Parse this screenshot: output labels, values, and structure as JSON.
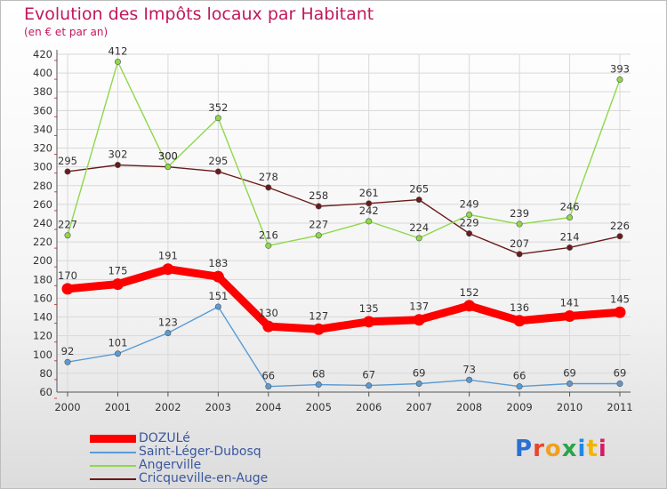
{
  "title": "Evolution des Impôts locaux par Habitant",
  "subtitle": "(en € et par an)",
  "logo": "Proxiti",
  "colors": {
    "title": "#c2185b",
    "legend_text": "#3a57a0",
    "grid": "#d8d8d8",
    "axis": "#555555"
  },
  "chart_data": {
    "type": "line",
    "title": "Evolution des Impôts locaux par Habitant",
    "subtitle": "(en € et par an)",
    "xlabel": "",
    "ylabel": "",
    "x": [
      "2000",
      "2001",
      "2002",
      "2003",
      "2004",
      "2005",
      "2006",
      "2007",
      "2008",
      "2009",
      "2010",
      "2011"
    ],
    "ylim": [
      60,
      420
    ],
    "yticks": [
      60,
      80,
      100,
      120,
      140,
      160,
      180,
      200,
      220,
      240,
      260,
      280,
      300,
      320,
      340,
      360,
      380,
      400,
      420
    ],
    "grid": true,
    "legend_position": "bottom-left",
    "series": [
      {
        "name": "Cricqueville-en-Auge",
        "color": "#6b1a1a",
        "values": [
          295,
          302,
          300,
          295,
          278,
          258,
          261,
          265,
          229,
          207,
          214,
          226
        ]
      },
      {
        "name": "Angerville",
        "color": "#8ed84a",
        "values": [
          227,
          412,
          300,
          352,
          216,
          227,
          242,
          224,
          249,
          239,
          246,
          393
        ]
      },
      {
        "name": "Saint-Léger-Dubosq",
        "color": "#5a9bd4",
        "values": [
          92,
          101,
          123,
          151,
          66,
          68,
          67,
          69,
          73,
          66,
          69,
          69
        ]
      },
      {
        "name": "DOZULé",
        "color": "#ff0000",
        "values": [
          170,
          175,
          191,
          183,
          130,
          127,
          135,
          137,
          152,
          136,
          141,
          145
        ]
      }
    ],
    "legend": [
      "DOZULé",
      "Saint-Léger-Dubosq",
      "Angerville",
      "Cricqueville-en-Auge"
    ]
  }
}
